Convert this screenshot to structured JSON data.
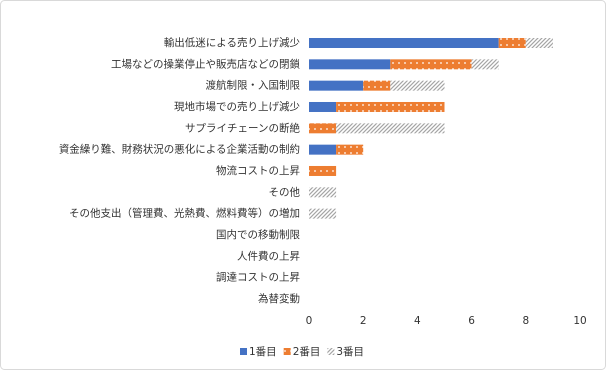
{
  "chart_data": {
    "type": "stacked-bar-horizontal",
    "categories": [
      "輸出低迷による売り上げ減少",
      "工場などの操業停止や販売店などの閉鎖",
      "渡航制限・入国制限",
      "現地市場での売り上げ減少",
      "サプライチェーンの断絶",
      "資金繰り難、財務状況の悪化による企業活動の制約",
      "物流コストの上昇",
      "その他",
      "その他支出（管理費、光熱費、燃料費等）の増加",
      "国内での移動制限",
      "人件費の上昇",
      "調達コストの上昇",
      "為替変動"
    ],
    "series": [
      {
        "name": "1番目",
        "color": "#4472c4",
        "values": [
          7,
          3,
          2,
          1,
          0,
          1,
          0,
          0,
          0,
          0,
          0,
          0,
          0
        ]
      },
      {
        "name": "2番目",
        "color": "#ed7d31",
        "values": [
          1,
          3,
          1,
          4,
          1,
          1,
          1,
          0,
          0,
          0,
          0,
          0,
          0
        ]
      },
      {
        "name": "3番目",
        "color": "#a5a5a5",
        "values": [
          1,
          1,
          2,
          0,
          4,
          0,
          0,
          1,
          1,
          0,
          0,
          0,
          0
        ]
      }
    ],
    "xlim": [
      0,
      10
    ],
    "xticks": [
      0,
      2,
      4,
      6,
      8,
      10
    ],
    "legend": "bottom"
  }
}
